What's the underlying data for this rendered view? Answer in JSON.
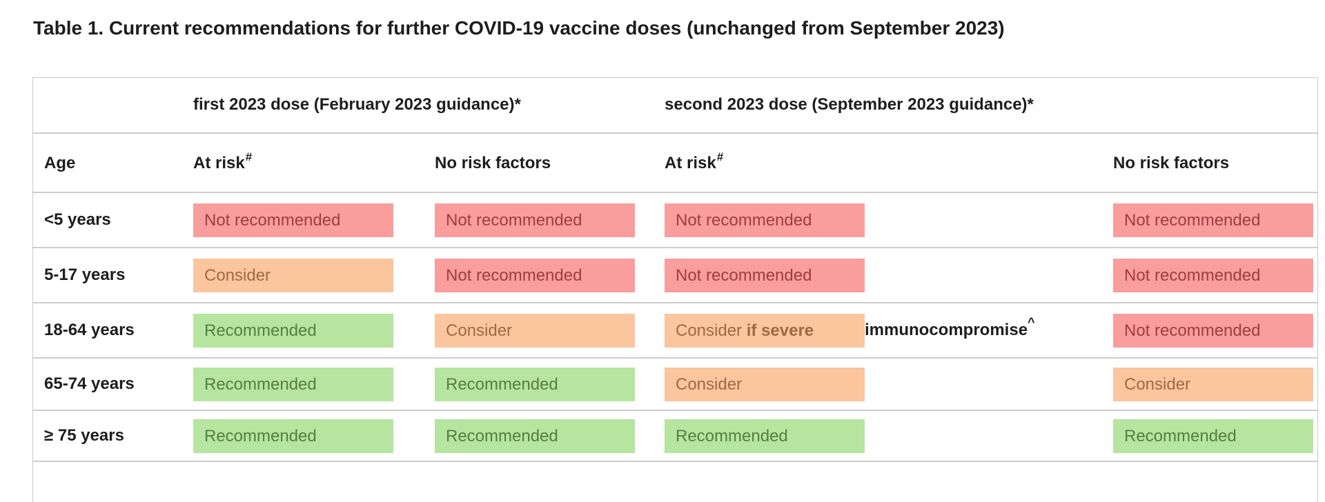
{
  "title": "Table 1. Current recommendations for further COVID-19 vaccine doses (unchanged from September 2023)",
  "table": {
    "group_headers": {
      "age_spacer": "",
      "first_dose": "first 2023 dose (February 2023 guidance)*",
      "second_dose": "second 2023 dose (September 2023 guidance)*"
    },
    "column_headers": [
      {
        "label": "Age",
        "sup": ""
      },
      {
        "label": "At risk",
        "sup": "#"
      },
      {
        "label": "No risk factors",
        "sup": ""
      },
      {
        "label": "At risk",
        "sup": "#"
      },
      {
        "label": "No risk factors",
        "sup": ""
      }
    ],
    "rows": [
      {
        "age": "<5 years",
        "cells": [
          {
            "status": "not-recommended",
            "label": "Not recommended"
          },
          {
            "status": "not-recommended",
            "label": "Not recommended"
          },
          {
            "status": "not-recommended",
            "label": "Not recommended"
          },
          {
            "status": "not-recommended",
            "label": "Not recommended"
          }
        ]
      },
      {
        "age": "5-17 years",
        "cells": [
          {
            "status": "consider",
            "label": "Consider"
          },
          {
            "status": "not-recommended",
            "label": "Not recommended"
          },
          {
            "status": "not-recommended",
            "label": "Not recommended"
          },
          {
            "status": "not-recommended",
            "label": "Not recommended"
          }
        ]
      },
      {
        "age": "18-64 years",
        "cells": [
          {
            "status": "recommended",
            "label": "Recommended"
          },
          {
            "status": "consider",
            "label": "Consider"
          },
          {
            "status": "consider",
            "label": "Consider ",
            "label_bold": "if severe",
            "suffix": "immunocompromise",
            "suffix_sup": "^"
          },
          {
            "status": "not-recommended",
            "label": "Not recommended"
          }
        ]
      },
      {
        "age": "65-74 years",
        "cells": [
          {
            "status": "recommended",
            "label": "Recommended"
          },
          {
            "status": "recommended",
            "label": "Recommended"
          },
          {
            "status": "consider",
            "label": "Consider"
          },
          {
            "status": "consider",
            "label": "Consider"
          }
        ]
      },
      {
        "age": "≥ 75 years",
        "cells": [
          {
            "status": "recommended",
            "label": "Recommended"
          },
          {
            "status": "recommended",
            "label": "Recommended"
          },
          {
            "status": "recommended",
            "label": "Recommended"
          },
          {
            "status": "recommended",
            "label": "Recommended"
          }
        ]
      }
    ]
  },
  "status_colors": {
    "recommended_bg": "#b5e59f",
    "recommended_text": "#567e41",
    "consider_bg": "#fbc59e",
    "consider_text": "#9d6947",
    "not_recommended_bg": "#f99d9d",
    "not_recommended_text": "#a33b42",
    "border": "#cccccc",
    "text": "#1d1d1f"
  }
}
